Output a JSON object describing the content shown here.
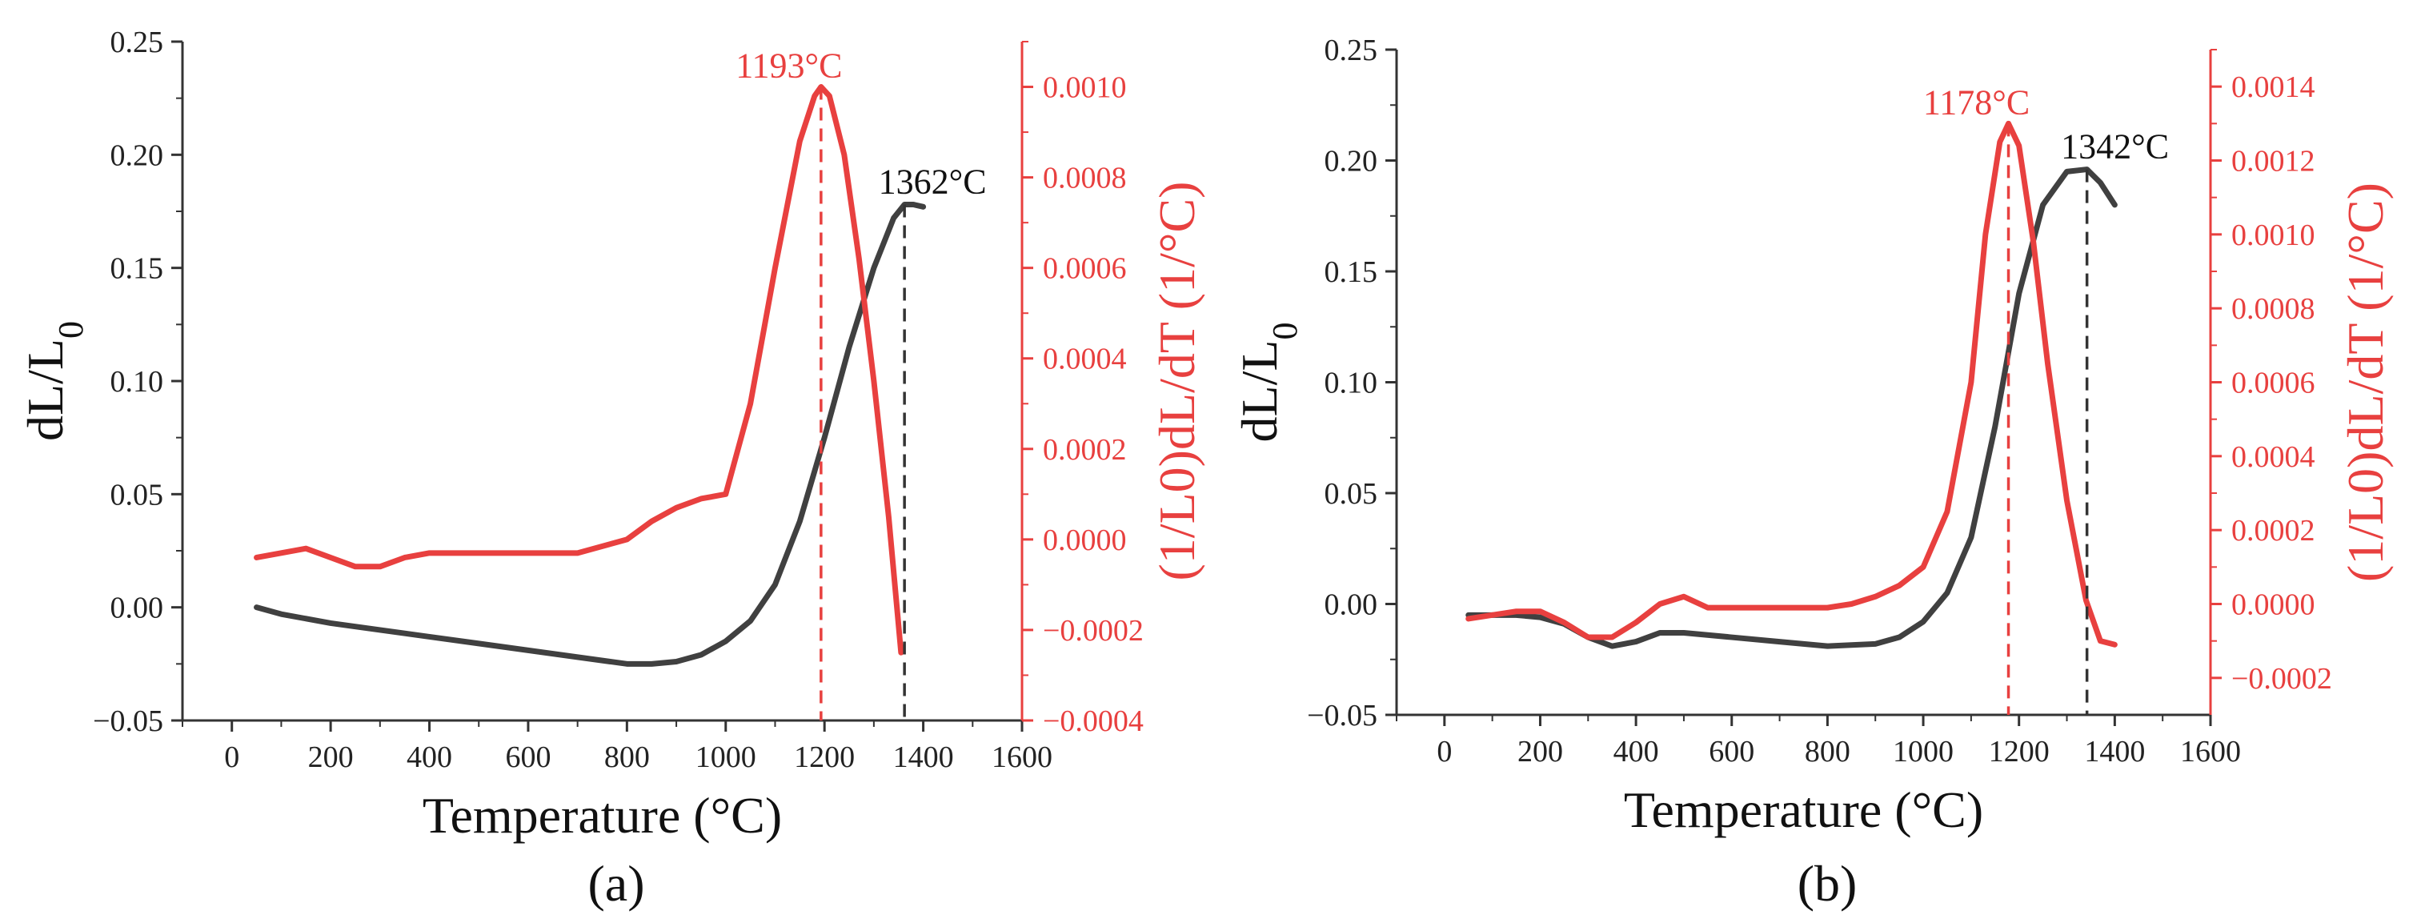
{
  "figure": {
    "panels": [
      {
        "panel_label": "(a)",
        "chart_data": {
          "type": "line",
          "title": "",
          "xlabel": "Temperature (°C)",
          "ylabel": "dL/L0",
          "ylabel_main": "dL/L",
          "ylabel_sub": "0",
          "y2label": "(1/L0)dL/dT (1/°C)",
          "xlim": [
            -100,
            1600
          ],
          "ylim": [
            -0.05,
            0.25
          ],
          "y2lim": [
            -0.0004,
            0.0011
          ],
          "xticks": [
            0,
            200,
            400,
            600,
            800,
            1000,
            1200,
            1400,
            1600
          ],
          "xtick_labels": [
            "0",
            "200",
            "400",
            "600",
            "800",
            "1000",
            "1200",
            "1400",
            "1600"
          ],
          "yticks": [
            -0.05,
            0.0,
            0.05,
            0.1,
            0.15,
            0.2,
            0.25
          ],
          "ytick_labels": [
            "−0.05",
            "0.00",
            "0.05",
            "0.10",
            "0.15",
            "0.20",
            "0.25"
          ],
          "y2ticks": [
            -0.0004,
            -0.0002,
            0.0,
            0.0002,
            0.0004,
            0.0006,
            0.0008,
            0.001
          ],
          "y2tick_labels": [
            "−0.0004",
            "−0.0002",
            "0.0000",
            "0.0002",
            "0.0004",
            "0.0006",
            "0.0008",
            "0.0010"
          ],
          "grid": false,
          "colors": {
            "dl": "#404040",
            "deriv": "#e8403f",
            "axis2": "#e8403f"
          },
          "series": [
            {
              "name": "dL/L0",
              "axis": "left",
              "x": [
                50,
                100,
                200,
                300,
                400,
                500,
                600,
                700,
                800,
                850,
                900,
                950,
                1000,
                1050,
                1100,
                1150,
                1200,
                1250,
                1300,
                1340,
                1362,
                1380,
                1400
              ],
              "y": [
                0.0,
                -0.003,
                -0.007,
                -0.01,
                -0.013,
                -0.016,
                -0.019,
                -0.022,
                -0.025,
                -0.025,
                -0.024,
                -0.021,
                -0.015,
                -0.006,
                0.01,
                0.038,
                0.075,
                0.115,
                0.15,
                0.172,
                0.178,
                0.178,
                0.177
              ]
            },
            {
              "name": "(1/L0)dL/dT",
              "axis": "right",
              "x": [
                50,
                100,
                150,
                200,
                250,
                300,
                350,
                400,
                500,
                600,
                700,
                800,
                850,
                900,
                950,
                1000,
                1050,
                1100,
                1150,
                1180,
                1193,
                1210,
                1240,
                1270,
                1300,
                1330,
                1355
              ],
              "y": [
                -4e-05,
                -3e-05,
                -2e-05,
                -4e-05,
                -6e-05,
                -6e-05,
                -4e-05,
                -3e-05,
                -3e-05,
                -3e-05,
                -3e-05,
                0.0,
                4e-05,
                7e-05,
                9e-05,
                0.0001,
                0.0003,
                0.0006,
                0.00088,
                0.00098,
                0.001,
                0.00098,
                0.00085,
                0.00062,
                0.00035,
                5e-05,
                -0.00025
              ]
            }
          ],
          "annotations": [
            {
              "text": "1193°C",
              "x": 1193,
              "series": "(1/L0)dL/dT",
              "color": "#e8403f"
            },
            {
              "text": "1362°C",
              "x": 1362,
              "series": "dL/L0",
              "color": "#111111"
            }
          ]
        }
      },
      {
        "panel_label": "(b)",
        "chart_data": {
          "type": "line",
          "title": "",
          "xlabel": "Temperature (°C)",
          "ylabel": "dL/L0",
          "ylabel_main": "dL/L",
          "ylabel_sub": "0",
          "y2label": "(1/L0)dL/dT (1/°C)",
          "xlim": [
            -100,
            1600
          ],
          "ylim": [
            -0.05,
            0.25
          ],
          "y2lim": [
            -0.0003,
            0.0015
          ],
          "xticks": [
            0,
            200,
            400,
            600,
            800,
            1000,
            1200,
            1400,
            1600
          ],
          "xtick_labels": [
            "0",
            "200",
            "400",
            "600",
            "800",
            "1000",
            "1200",
            "1400",
            "1600"
          ],
          "yticks": [
            -0.05,
            0.0,
            0.05,
            0.1,
            0.15,
            0.2,
            0.25
          ],
          "ytick_labels": [
            "−0.05",
            "0.00",
            "0.05",
            "0.10",
            "0.15",
            "0.20",
            "0.25"
          ],
          "y2ticks": [
            -0.0002,
            0.0,
            0.0002,
            0.0004,
            0.0006,
            0.0008,
            0.001,
            0.0012,
            0.0014
          ],
          "y2tick_labels": [
            "−0.0002",
            "0.0000",
            "0.0002",
            "0.0004",
            "0.0006",
            "0.0008",
            "0.0010",
            "0.0012",
            "0.0014"
          ],
          "grid": false,
          "colors": {
            "dl": "#404040",
            "deriv": "#e8403f",
            "axis2": "#e8403f"
          },
          "series": [
            {
              "name": "dL/L0",
              "axis": "left",
              "x": [
                50,
                100,
                150,
                200,
                250,
                300,
                350,
                400,
                450,
                500,
                600,
                700,
                800,
                900,
                950,
                1000,
                1050,
                1100,
                1150,
                1200,
                1250,
                1300,
                1342,
                1370,
                1400
              ],
              "y": [
                -0.005,
                -0.005,
                -0.005,
                -0.006,
                -0.009,
                -0.015,
                -0.019,
                -0.017,
                -0.013,
                -0.013,
                -0.015,
                -0.017,
                -0.019,
                -0.018,
                -0.015,
                -0.008,
                0.005,
                0.03,
                0.08,
                0.14,
                0.18,
                0.195,
                0.196,
                0.19,
                0.18
              ]
            },
            {
              "name": "(1/L0)dL/dT",
              "axis": "right",
              "x": [
                50,
                100,
                150,
                200,
                250,
                300,
                350,
                400,
                450,
                500,
                550,
                600,
                700,
                800,
                850,
                900,
                950,
                1000,
                1050,
                1100,
                1130,
                1160,
                1178,
                1200,
                1230,
                1260,
                1300,
                1340,
                1370,
                1400
              ],
              "y": [
                -4e-05,
                -3e-05,
                -2e-05,
                -2e-05,
                -5e-05,
                -9e-05,
                -9e-05,
                -5e-05,
                0.0,
                2e-05,
                -1e-05,
                -1e-05,
                -1e-05,
                -1e-05,
                0.0,
                2e-05,
                5e-05,
                0.0001,
                0.00025,
                0.0006,
                0.001,
                0.00125,
                0.0013,
                0.00124,
                0.00098,
                0.00065,
                0.00028,
                1e-05,
                -0.0001,
                -0.00011
              ]
            }
          ],
          "annotations": [
            {
              "text": "1178°C",
              "x": 1178,
              "series": "(1/L0)dL/dT",
              "color": "#e8403f"
            },
            {
              "text": "1342°C",
              "x": 1342,
              "series": "dL/L0",
              "color": "#111111"
            }
          ]
        }
      }
    ]
  }
}
